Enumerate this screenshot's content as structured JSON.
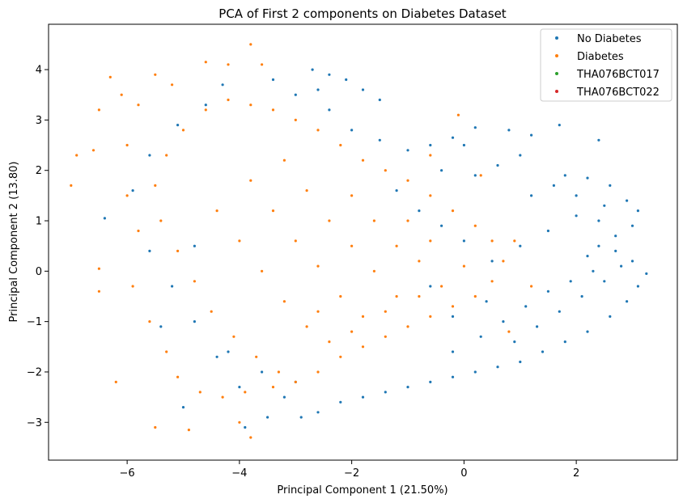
{
  "chart_data": {
    "type": "scatter",
    "title": "PCA of First 2 components on Diabetes Dataset",
    "xlabel": "Principal Component 1 (21.50%)",
    "ylabel": "Principal Component 2 (13.80)",
    "xlim": [
      -7.4,
      3.8
    ],
    "ylim": [
      -3.75,
      4.9
    ],
    "xticks": [
      -6,
      -4,
      -2,
      0,
      2
    ],
    "yticks": [
      -3,
      -2,
      -1,
      0,
      1,
      2,
      3,
      4
    ],
    "xtick_labels": [
      "−6",
      "−4",
      "−2",
      "0",
      "2"
    ],
    "ytick_labels": [
      "−3",
      "−2",
      "−1",
      "0",
      "1",
      "2",
      "3",
      "4"
    ],
    "grid": false,
    "legend_position": "top-right",
    "series": [
      {
        "name": "No Diabetes",
        "color": "#1f77b4",
        "points": [
          [
            -3.9,
            -3.1
          ],
          [
            -3.5,
            -2.9
          ],
          [
            -2.9,
            -2.9
          ],
          [
            -5.0,
            -2.7
          ],
          [
            -5.4,
            -1.1
          ],
          [
            -6.4,
            1.05
          ],
          [
            -4.8,
            0.5
          ],
          [
            -4.4,
            -1.7
          ],
          [
            -4.0,
            -2.3
          ],
          [
            -3.2,
            -2.5
          ],
          [
            -2.6,
            -2.8
          ],
          [
            -2.2,
            -2.6
          ],
          [
            -1.8,
            -2.5
          ],
          [
            -1.4,
            -2.4
          ],
          [
            -1.0,
            -2.3
          ],
          [
            -0.6,
            -2.2
          ],
          [
            -0.2,
            -2.1
          ],
          [
            0.2,
            -2.0
          ],
          [
            0.6,
            -1.9
          ],
          [
            1.0,
            -1.8
          ],
          [
            1.4,
            -1.6
          ],
          [
            1.8,
            -1.4
          ],
          [
            2.2,
            -1.2
          ],
          [
            2.6,
            -0.9
          ],
          [
            2.9,
            -0.6
          ],
          [
            3.1,
            -0.3
          ],
          [
            3.25,
            -0.05
          ],
          [
            3.0,
            0.2
          ],
          [
            2.7,
            0.4
          ],
          [
            2.4,
            0.5
          ],
          [
            3.0,
            0.9
          ],
          [
            3.1,
            1.2
          ],
          [
            2.9,
            1.4
          ],
          [
            2.6,
            1.7
          ],
          [
            2.2,
            1.85
          ],
          [
            1.8,
            1.9
          ],
          [
            2.4,
            2.6
          ],
          [
            1.7,
            2.9
          ],
          [
            1.2,
            2.7
          ],
          [
            0.8,
            2.8
          ],
          [
            0.2,
            2.85
          ],
          [
            -0.2,
            2.65
          ],
          [
            -0.6,
            2.5
          ],
          [
            -1.0,
            2.4
          ],
          [
            -1.5,
            2.6
          ],
          [
            -2.0,
            2.8
          ],
          [
            -2.4,
            3.2
          ],
          [
            -2.6,
            3.6
          ],
          [
            -2.7,
            4.0
          ],
          [
            -2.4,
            3.9
          ],
          [
            -2.1,
            3.8
          ],
          [
            -1.8,
            3.6
          ],
          [
            -1.5,
            3.4
          ],
          [
            -3.0,
            3.5
          ],
          [
            -3.4,
            3.8
          ],
          [
            -4.3,
            3.7
          ],
          [
            -4.6,
            3.3
          ],
          [
            -5.1,
            2.9
          ],
          [
            -5.6,
            2.3
          ],
          [
            -5.9,
            1.6
          ],
          [
            -5.6,
            0.4
          ],
          [
            -5.2,
            -0.3
          ],
          [
            -4.8,
            -1.0
          ],
          [
            -4.2,
            -1.6
          ],
          [
            -3.6,
            -2.0
          ],
          [
            -3.0,
            -2.2
          ],
          [
            -0.2,
            -1.6
          ],
          [
            0.3,
            -1.3
          ],
          [
            0.7,
            -1.0
          ],
          [
            1.1,
            -0.7
          ],
          [
            1.5,
            -0.4
          ],
          [
            1.9,
            -0.2
          ],
          [
            2.3,
            0.0
          ],
          [
            0.5,
            0.2
          ],
          [
            1.0,
            0.5
          ],
          [
            1.5,
            0.8
          ],
          [
            2.0,
            1.1
          ],
          [
            2.5,
            1.3
          ],
          [
            0.2,
            1.9
          ],
          [
            0.6,
            2.1
          ],
          [
            1.0,
            2.3
          ],
          [
            -0.4,
            2.0
          ],
          [
            0.0,
            2.5
          ],
          [
            -1.2,
            1.6
          ],
          [
            -0.8,
            1.2
          ],
          [
            -0.4,
            0.9
          ],
          [
            0.0,
            0.6
          ],
          [
            -0.6,
            -0.3
          ],
          [
            -0.2,
            -0.9
          ],
          [
            0.4,
            -0.6
          ],
          [
            0.9,
            -1.4
          ],
          [
            1.3,
            -1.1
          ],
          [
            1.7,
            -0.8
          ],
          [
            2.1,
            -0.5
          ],
          [
            2.5,
            -0.2
          ],
          [
            2.8,
            0.1
          ],
          [
            1.2,
            1.5
          ],
          [
            1.6,
            1.7
          ],
          [
            2.0,
            1.5
          ],
          [
            2.4,
            1.0
          ],
          [
            2.7,
            0.7
          ],
          [
            2.2,
            0.3
          ]
        ]
      },
      {
        "name": "Diabetes",
        "color": "#ff7f0e",
        "points": [
          [
            -7.0,
            1.7
          ],
          [
            -6.9,
            2.3
          ],
          [
            -6.6,
            2.4
          ],
          [
            -6.5,
            3.2
          ],
          [
            -6.3,
            3.85
          ],
          [
            -6.1,
            3.5
          ],
          [
            -6.5,
            0.05
          ],
          [
            -6.5,
            -0.4
          ],
          [
            -6.2,
            -2.2
          ],
          [
            -5.5,
            -3.1
          ],
          [
            -4.9,
            -3.15
          ],
          [
            -4.0,
            -3.0
          ],
          [
            -3.8,
            -3.3
          ],
          [
            -3.8,
            4.5
          ],
          [
            -3.6,
            4.1
          ],
          [
            -4.2,
            4.1
          ],
          [
            -4.6,
            4.15
          ],
          [
            -5.2,
            3.7
          ],
          [
            -5.5,
            3.9
          ],
          [
            -5.8,
            3.3
          ],
          [
            -6.0,
            2.5
          ],
          [
            -6.0,
            1.5
          ],
          [
            -5.8,
            0.8
          ],
          [
            -5.9,
            -0.3
          ],
          [
            -5.6,
            -1.0
          ],
          [
            -5.3,
            -1.6
          ],
          [
            -5.1,
            -2.1
          ],
          [
            -4.7,
            -2.4
          ],
          [
            -4.3,
            -2.5
          ],
          [
            -3.9,
            -2.4
          ],
          [
            -3.4,
            -2.3
          ],
          [
            -3.0,
            -2.2
          ],
          [
            -2.6,
            -2.0
          ],
          [
            -2.2,
            -1.7
          ],
          [
            -1.8,
            -1.5
          ],
          [
            -1.4,
            -1.3
          ],
          [
            -1.0,
            -1.1
          ],
          [
            -0.6,
            -0.9
          ],
          [
            -0.2,
            -0.7
          ],
          [
            0.2,
            -0.5
          ],
          [
            0.5,
            -0.2
          ],
          [
            0.7,
            0.2
          ],
          [
            0.5,
            0.6
          ],
          [
            0.2,
            0.9
          ],
          [
            -0.2,
            1.2
          ],
          [
            -0.6,
            1.5
          ],
          [
            -1.0,
            1.8
          ],
          [
            -1.4,
            2.0
          ],
          [
            -1.8,
            2.2
          ],
          [
            -2.2,
            2.5
          ],
          [
            -2.6,
            2.8
          ],
          [
            -3.0,
            3.0
          ],
          [
            -3.4,
            3.2
          ],
          [
            -3.8,
            3.3
          ],
          [
            -4.2,
            3.4
          ],
          [
            -4.6,
            3.2
          ],
          [
            -5.0,
            2.8
          ],
          [
            -5.3,
            2.3
          ],
          [
            -5.5,
            1.7
          ],
          [
            -5.4,
            1.0
          ],
          [
            -5.1,
            0.4
          ],
          [
            -4.8,
            -0.2
          ],
          [
            -4.5,
            -0.8
          ],
          [
            -4.1,
            -1.3
          ],
          [
            -3.7,
            -1.7
          ],
          [
            -3.3,
            -2.0
          ],
          [
            -4.4,
            1.2
          ],
          [
            -4.0,
            0.6
          ],
          [
            -3.6,
            0.0
          ],
          [
            -3.2,
            -0.6
          ],
          [
            -2.8,
            -1.1
          ],
          [
            -2.4,
            -1.4
          ],
          [
            -3.8,
            1.8
          ],
          [
            -3.4,
            1.2
          ],
          [
            -3.0,
            0.6
          ],
          [
            -2.6,
            0.1
          ],
          [
            -2.2,
            -0.5
          ],
          [
            -1.8,
            -0.9
          ],
          [
            -3.2,
            2.2
          ],
          [
            -2.8,
            1.6
          ],
          [
            -2.4,
            1.0
          ],
          [
            -2.0,
            0.5
          ],
          [
            -1.6,
            0.0
          ],
          [
            -1.2,
            -0.5
          ],
          [
            -2.0,
            1.5
          ],
          [
            -1.6,
            1.0
          ],
          [
            -1.2,
            0.5
          ],
          [
            -0.8,
            0.2
          ],
          [
            -0.4,
            -0.3
          ],
          [
            0.0,
            0.1
          ],
          [
            -1.0,
            1.0
          ],
          [
            -0.6,
            0.6
          ],
          [
            -2.6,
            -0.8
          ],
          [
            -2.0,
            -1.2
          ],
          [
            -1.4,
            -0.8
          ],
          [
            -0.8,
            -0.5
          ],
          [
            -0.1,
            3.1
          ],
          [
            -0.6,
            2.3
          ],
          [
            0.3,
            1.9
          ],
          [
            0.9,
            0.6
          ],
          [
            1.2,
            -0.3
          ],
          [
            0.8,
            -1.2
          ]
        ]
      },
      {
        "name": "THA076BCT017",
        "color": "#2ca02c",
        "points": []
      },
      {
        "name": "THA076BCT022",
        "color": "#d62728",
        "points": []
      }
    ]
  }
}
